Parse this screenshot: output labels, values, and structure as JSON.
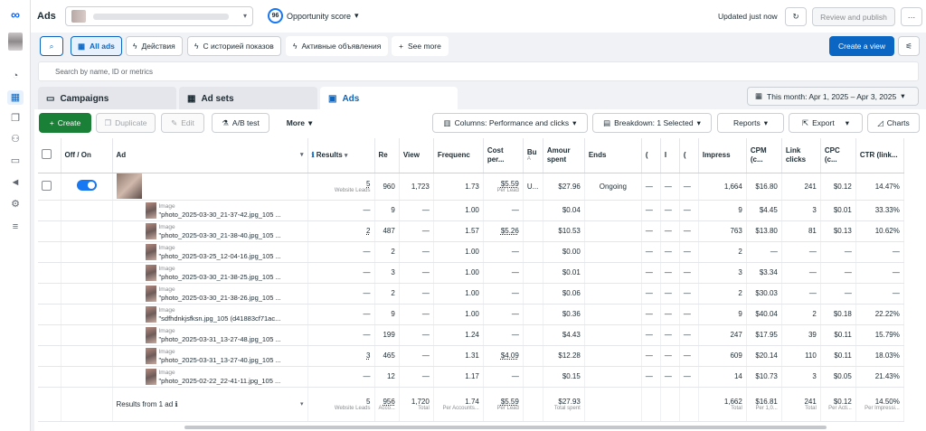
{
  "app": {
    "title": "Ads",
    "score": "96",
    "score_label": "Opportunity score",
    "updated": "Updated just now",
    "review_button": "Review and publish",
    "more_icon": "···"
  },
  "filters": {
    "all_ads": "All ads",
    "f1": "Действия",
    "f2": "С историей показов",
    "f3": "Активные объявления",
    "see_more": "See more",
    "create_view": "Create a view"
  },
  "search": {
    "placeholder": "Search by name, ID or metrics"
  },
  "tabs": {
    "campaigns": "Campaigns",
    "adsets": "Ad sets",
    "ads": "Ads"
  },
  "date_range": "This month: Apr 1, 2025 – Apr 3, 2025",
  "actions": {
    "create": "Create",
    "duplicate": "Duplicate",
    "edit": "Edit",
    "abtest": "A/B test",
    "more": "More",
    "columns": "Columns: Performance and clicks",
    "breakdown": "Breakdown: 1 Selected",
    "reports": "Reports",
    "export": "Export",
    "charts": "Charts"
  },
  "columns": {
    "offon": "Off / On",
    "ad": "Ad",
    "results": "Results",
    "reach": "Re",
    "views": "View",
    "freq": "Frequenc",
    "cost": "Cost per...",
    "budget": "Bu",
    "budget_sub": "A",
    "amount": "Amour spent",
    "ends": "Ends",
    "c1": "(",
    "c2": "I",
    "c3": "(",
    "impress": "Impress",
    "cpm": "CPM (c...",
    "clicks": "Link clicks",
    "cpc": "CPC (c...",
    "ctr": "CTR (link..."
  },
  "parent_row": {
    "results": "5",
    "results_sub": "Website Leads",
    "reach": "960",
    "views": "1,723",
    "freq": "1.73",
    "cost": "$5.59",
    "cost_sub": "Per Lead",
    "budget": "U...",
    "amount": "$27.96",
    "ends": "Ongoing",
    "c1": "—",
    "c2": "—",
    "c3": "—",
    "impress": "1,664",
    "cpm": "$16.80",
    "clicks": "241",
    "cpc": "$0.12",
    "ctr": "14.47%"
  },
  "rows": [
    {
      "kind": "Image",
      "name": "\"photo_2025-03-30_21-37-42.jpg_105 ...",
      "results": "—",
      "reach": "9",
      "views": "—",
      "freq": "1.00",
      "cost": "—",
      "amount": "$0.04",
      "impress": "9",
      "cpm": "$4.45",
      "clicks": "3",
      "cpc": "$0.01",
      "ctr": "33.33%"
    },
    {
      "kind": "Image",
      "name": "\"photo_2025-03-30_21-38-40.jpg_105 ...",
      "results": "2",
      "reach": "487",
      "views": "—",
      "freq": "1.57",
      "cost": "$5.26",
      "amount": "$10.53",
      "impress": "763",
      "cpm": "$13.80",
      "clicks": "81",
      "cpc": "$0.13",
      "ctr": "10.62%"
    },
    {
      "kind": "Image",
      "name": "\"photo_2025-03-25_12-04-16.jpg_105 ...",
      "results": "—",
      "reach": "2",
      "views": "—",
      "freq": "1.00",
      "cost": "—",
      "amount": "$0.00",
      "impress": "2",
      "cpm": "—",
      "clicks": "—",
      "cpc": "—",
      "ctr": "—"
    },
    {
      "kind": "Image",
      "name": "\"photo_2025-03-30_21-38-25.jpg_105 ...",
      "results": "—",
      "reach": "3",
      "views": "—",
      "freq": "1.00",
      "cost": "—",
      "amount": "$0.01",
      "impress": "3",
      "cpm": "$3.34",
      "clicks": "—",
      "cpc": "—",
      "ctr": "—"
    },
    {
      "kind": "Image",
      "name": "\"photo_2025-03-30_21-38-26.jpg_105 ...",
      "results": "—",
      "reach": "2",
      "views": "—",
      "freq": "1.00",
      "cost": "—",
      "amount": "$0.06",
      "impress": "2",
      "cpm": "$30.03",
      "clicks": "—",
      "cpc": "—",
      "ctr": "—"
    },
    {
      "kind": "Image",
      "name": "\"sdfhdnkjsfksn.jpg_105 (d41883cf71ac...",
      "results": "—",
      "reach": "9",
      "views": "—",
      "freq": "1.00",
      "cost": "—",
      "amount": "$0.36",
      "impress": "9",
      "cpm": "$40.04",
      "clicks": "2",
      "cpc": "$0.18",
      "ctr": "22.22%"
    },
    {
      "kind": "Image",
      "name": "\"photo_2025-03-31_13-27-48.jpg_105 ...",
      "results": "—",
      "reach": "199",
      "views": "—",
      "freq": "1.24",
      "cost": "—",
      "amount": "$4.43",
      "impress": "247",
      "cpm": "$17.95",
      "clicks": "39",
      "cpc": "$0.11",
      "ctr": "15.79%"
    },
    {
      "kind": "Image",
      "name": "\"photo_2025-03-31_13-27-40.jpg_105 ...",
      "results": "3",
      "reach": "465",
      "views": "—",
      "freq": "1.31",
      "cost": "$4.09",
      "amount": "$12.28",
      "impress": "609",
      "cpm": "$20.14",
      "clicks": "110",
      "cpc": "$0.11",
      "ctr": "18.03%"
    },
    {
      "kind": "Image",
      "name": "\"photo_2025-02-22_22-41-11.jpg_105 ...",
      "results": "—",
      "reach": "12",
      "views": "—",
      "freq": "1.17",
      "cost": "—",
      "amount": "$0.15",
      "impress": "14",
      "cpm": "$10.73",
      "clicks": "3",
      "cpc": "$0.05",
      "ctr": "21.43%"
    }
  ],
  "totals": {
    "label": "Results from 1 ad",
    "results": "5",
    "results_sub": "Website Leads",
    "reach": "956",
    "reach_sub": "Acco...",
    "views": "1,720",
    "views_sub": "Total",
    "freq": "1.74",
    "freq_sub": "Per Accounts...",
    "cost": "$5.59",
    "cost_sub": "Per Lead",
    "amount": "$27.93",
    "amount_sub": "Total spent",
    "impress": "1,662",
    "impress_sub": "Total",
    "cpm": "$16.81",
    "cpm_sub": "Per 1,0...",
    "clicks": "241",
    "clicks_sub": "Total",
    "cpc": "$0.12",
    "cpc_sub": "Per Acti...",
    "ctr": "14.50%",
    "ctr_sub": "Per Impressi..."
  },
  "colors": {
    "accent": "#0a66c2",
    "create": "#1a7f37",
    "toggle": "#1877f2"
  }
}
